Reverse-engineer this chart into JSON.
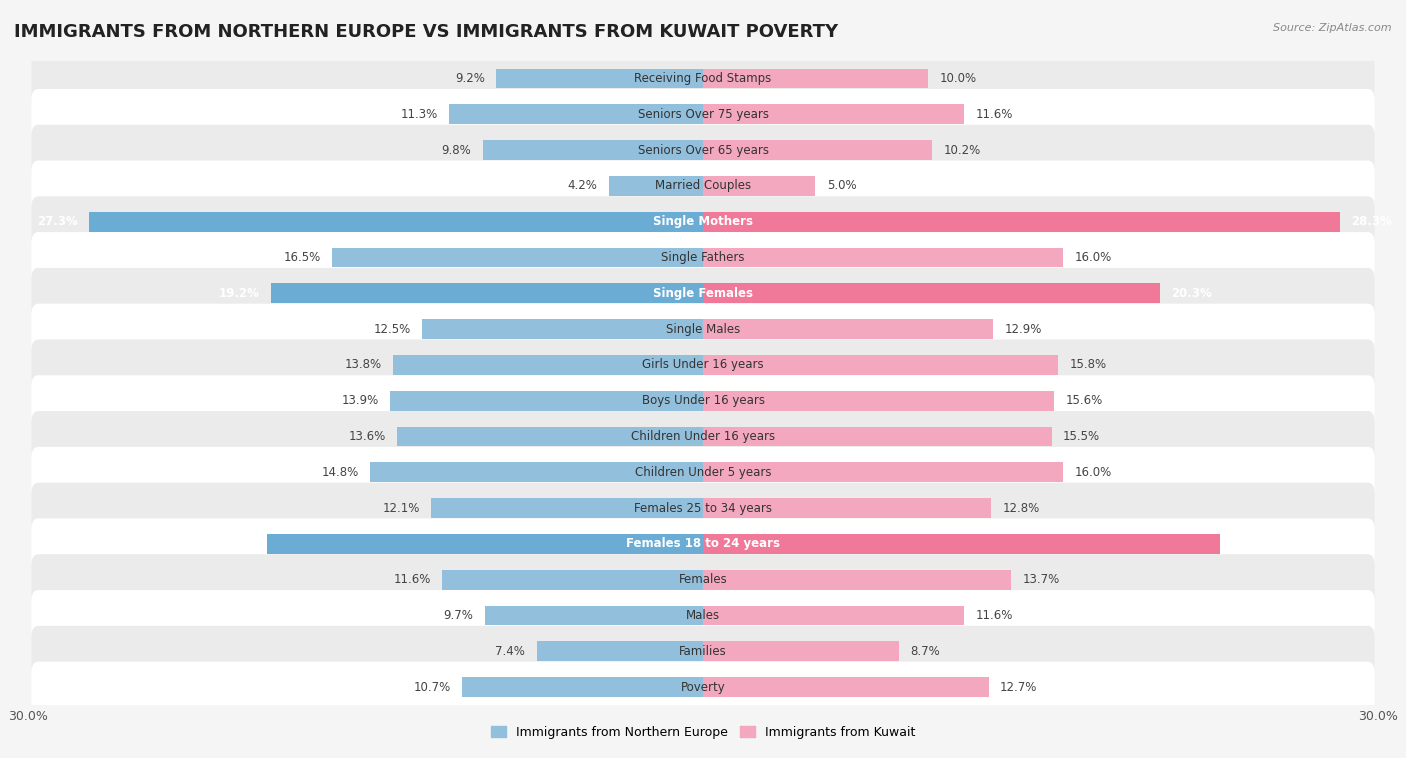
{
  "title": "IMMIGRANTS FROM NORTHERN EUROPE VS IMMIGRANTS FROM KUWAIT POVERTY",
  "source": "Source: ZipAtlas.com",
  "categories": [
    "Poverty",
    "Families",
    "Males",
    "Females",
    "Females 18 to 24 years",
    "Females 25 to 34 years",
    "Children Under 5 years",
    "Children Under 16 years",
    "Boys Under 16 years",
    "Girls Under 16 years",
    "Single Males",
    "Single Females",
    "Single Fathers",
    "Single Mothers",
    "Married Couples",
    "Seniors Over 65 years",
    "Seniors Over 75 years",
    "Receiving Food Stamps"
  ],
  "left_values": [
    10.7,
    7.4,
    9.7,
    11.6,
    19.4,
    12.1,
    14.8,
    13.6,
    13.9,
    13.8,
    12.5,
    19.2,
    16.5,
    27.3,
    4.2,
    9.8,
    11.3,
    9.2
  ],
  "right_values": [
    12.7,
    8.7,
    11.6,
    13.7,
    23.0,
    12.8,
    16.0,
    15.5,
    15.6,
    15.8,
    12.9,
    20.3,
    16.0,
    28.3,
    5.0,
    10.2,
    11.6,
    10.0
  ],
  "left_color": "#92c0dc",
  "right_color": "#f4a8c0",
  "left_highlight_color": "#6aacd4",
  "right_highlight_color": "#f07898",
  "highlight_rows": [
    4,
    11,
    13
  ],
  "axis_max": 30.0,
  "left_label": "Immigrants from Northern Europe",
  "right_label": "Immigrants from Kuwait",
  "bg_color": "#f5f5f5",
  "row_bg_light": "#ffffff",
  "row_bg_dark": "#ebebeb",
  "title_fontsize": 13,
  "label_fontsize": 8.5,
  "value_fontsize": 8.5
}
